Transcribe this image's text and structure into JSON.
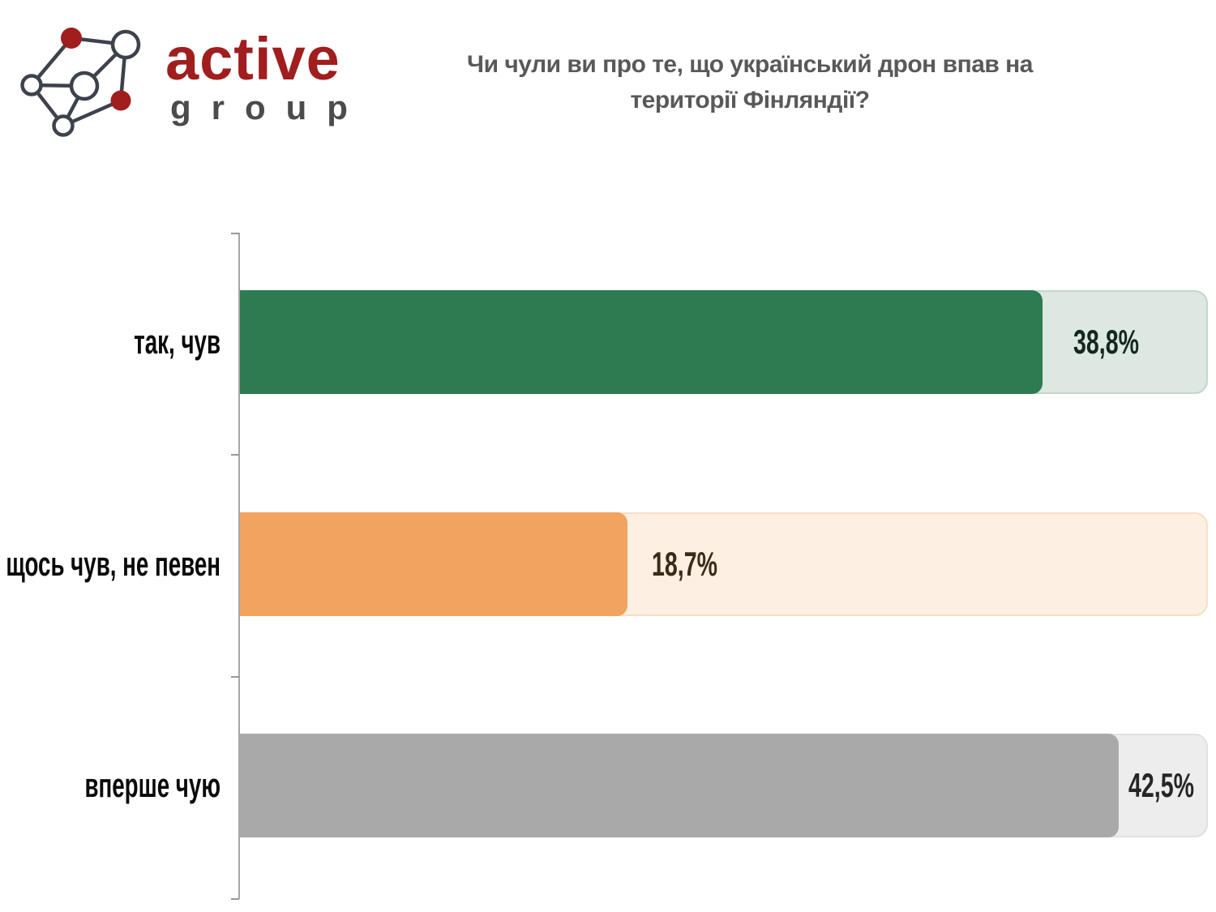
{
  "brand": {
    "name_primary": "active",
    "name_secondary": "group",
    "primary_color": "#a01e1e",
    "secondary_color": "#4b4b4b",
    "mark": "network-graph-logo"
  },
  "title": "Чи чули ви про те, що український дрон впав на території Фінляндії?",
  "chart_data": {
    "type": "bar",
    "orientation": "horizontal",
    "title": "Чи чули ви про те, що український дрон впав на території Фінляндії?",
    "categories": [
      "так, чув",
      "щось чув, не певен",
      "вперше чую"
    ],
    "values": [
      38.8,
      18.7,
      42.5
    ],
    "value_labels": [
      "38,8%",
      "18,7%",
      "42,5%"
    ],
    "xlim": [
      0,
      46.75
    ],
    "grid": false,
    "legend": false,
    "bar_colors": [
      "#2e7b52",
      "#f1a35f",
      "#a9a9a9"
    ],
    "track_colors": [
      "#dce8e1",
      "#fdefe2",
      "#ededed"
    ],
    "track_border_colors": [
      "#c4d7ca",
      "#f8dfc5",
      "#e0e0e0"
    ],
    "value_label_colors": [
      "#142720",
      "#3a2a18",
      "#262626"
    ],
    "axis_color": "#a6a6a6"
  }
}
